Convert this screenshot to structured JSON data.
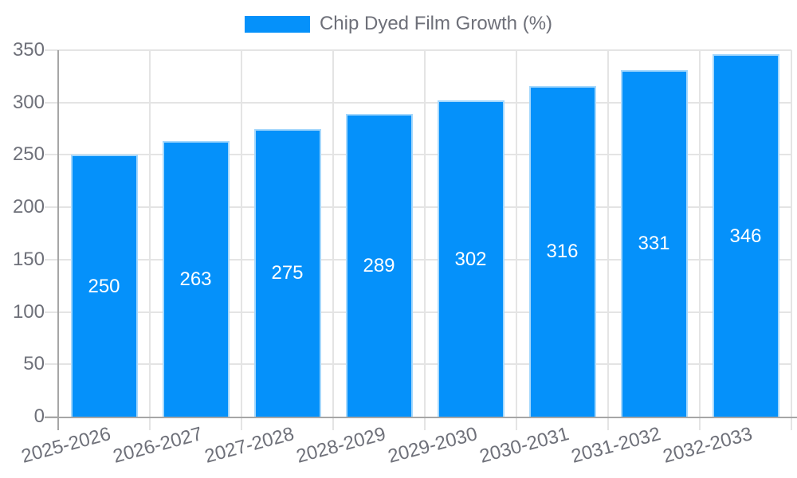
{
  "chart_data": {
    "type": "bar",
    "title": "",
    "legend": {
      "label": "Chip Dyed Film Growth (%)"
    },
    "categories": [
      "2025-2026",
      "2026-2027",
      "2027-2028",
      "2028-2029",
      "2029-2030",
      "2030-2031",
      "2031-2032",
      "2032-2033"
    ],
    "values": [
      250,
      263,
      275,
      289,
      302,
      316,
      331,
      346
    ],
    "value_labels_shown_inside_bars": true,
    "xlabel": "",
    "ylabel": "",
    "ylim": [
      0,
      350
    ],
    "yticks": [
      0,
      50,
      100,
      150,
      200,
      250,
      300,
      350
    ],
    "grid": true,
    "legend_position": "top-center",
    "xtick_rotation_deg": -15,
    "colors": {
      "bar_fill": "#0591fa",
      "bar_border": "#a6d8fc",
      "axis_line": "#a6a6a6",
      "gridline": "#e4e4e4",
      "text": "#6e7079",
      "value_label": "#ffffff",
      "background": "#ffffff"
    }
  }
}
